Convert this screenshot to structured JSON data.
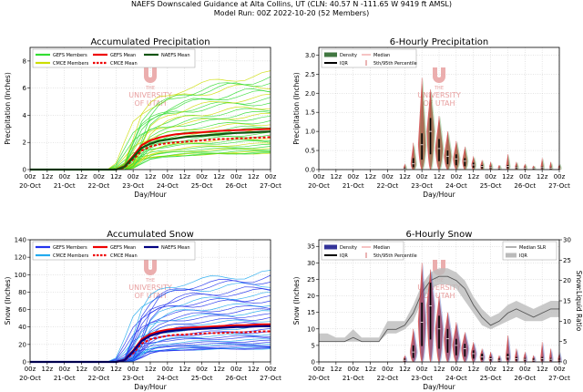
{
  "header": {
    "line1": "NAEFS Downscaled Guidance at Alta Collins, UT (CLN: 40.57 N -111.65 W 9419 ft AMSL)",
    "line2": "Model Run: 00Z 2022-10-20 (52 Members)"
  },
  "watermark": {
    "line1": "THE",
    "line2": "UNIVERSITY",
    "line3": "OF UTAH"
  },
  "colors": {
    "gefs_precip": "#33dd33",
    "cmce_precip": "#ccdd00",
    "naefs_precip": "#115511",
    "gefs_snow": "#2233ee",
    "cmce_snow": "#22aaee",
    "naefs_snow": "#000080",
    "gefs_mean": "#ee0000",
    "cmce_mean": "#ee0000",
    "violin_red": "#cc3333",
    "violin_green": "#449944",
    "violin_blue": "#3355bb",
    "watermark": "#e8a0a0"
  },
  "chart_data": [
    {
      "type": "line",
      "title": "Accumulated Precipitation",
      "xlabel": "Day/Hour",
      "ylabel": "Precipitation (Inches)",
      "ylim": [
        0,
        9
      ],
      "yticks": [
        0,
        2,
        4,
        6,
        8
      ],
      "grid": true,
      "x_hours": [
        0,
        6,
        12,
        18,
        24,
        30,
        36,
        42,
        48,
        54,
        60,
        66,
        72,
        78,
        84,
        90,
        96,
        102,
        108,
        114,
        120,
        126,
        132,
        138,
        144,
        150,
        156,
        162,
        168
      ],
      "x_tick_labels": [
        "00z",
        "12z",
        "00z",
        "12z",
        "00z",
        "12z",
        "00z",
        "12z",
        "00z",
        "12z",
        "00z",
        "12z",
        "00z",
        "12z",
        "00z"
      ],
      "x_day_labels": [
        "20-Oct",
        "21-Oct",
        "22-Oct",
        "23-Oct",
        "24-Oct",
        "25-Oct",
        "26-Oct",
        "27-Oct"
      ],
      "legend": [
        {
          "label": "GEFS Members",
          "color_key": "gefs_precip",
          "style": "solid"
        },
        {
          "label": "GEFS Mean",
          "color_key": "gefs_mean",
          "style": "solid"
        },
        {
          "label": "NAEFS Mean",
          "color_key": "naefs_precip",
          "style": "solid"
        },
        {
          "label": "CMCE Members",
          "color_key": "cmce_precip",
          "style": "solid"
        },
        {
          "label": "CMCE Mean",
          "color_key": "cmce_mean",
          "style": "dashed"
        }
      ],
      "series": [
        {
          "name": "NAEFS Mean",
          "values": [
            0,
            0,
            0,
            0,
            0,
            0,
            0,
            0,
            0,
            0,
            0,
            0.2,
            0.9,
            1.6,
            1.9,
            2.1,
            2.2,
            2.3,
            2.4,
            2.45,
            2.5,
            2.55,
            2.6,
            2.65,
            2.7,
            2.72,
            2.75,
            2.78,
            2.8
          ]
        },
        {
          "name": "GEFS Mean",
          "values": [
            0,
            0,
            0,
            0,
            0,
            0,
            0,
            0,
            0,
            0,
            0,
            0.25,
            1.0,
            1.8,
            2.15,
            2.35,
            2.5,
            2.6,
            2.65,
            2.7,
            2.75,
            2.8,
            2.85,
            2.88,
            2.9,
            2.92,
            2.95,
            2.97,
            3.0
          ]
        },
        {
          "name": "CMCE Mean",
          "values": [
            0,
            0,
            0,
            0,
            0,
            0,
            0,
            0,
            0,
            0,
            0,
            0.15,
            0.75,
            1.4,
            1.7,
            1.85,
            1.95,
            2.0,
            2.05,
            2.1,
            2.15,
            2.2,
            2.25,
            2.25,
            2.3,
            2.3,
            2.35,
            2.35,
            2.4
          ]
        }
      ],
      "member_max": 7.0,
      "member_min": 1.2
    },
    {
      "type": "bar",
      "title": "6-Hourly Precipitation",
      "xlabel": "Day/Hour",
      "ylabel": "Precipitation (Inches)",
      "ylim": [
        0,
        3.2
      ],
      "yticks": [
        0.0,
        0.5,
        1.0,
        1.5,
        2.0,
        2.5,
        3.0
      ],
      "grid": true,
      "x_tick_labels": [
        "00z",
        "12z",
        "00z",
        "12z",
        "00z",
        "12z",
        "00z",
        "12z",
        "00z",
        "12z",
        "00z",
        "12z",
        "00z",
        "12z",
        "00z"
      ],
      "x_day_labels": [
        "20-Oct",
        "21-Oct",
        "22-Oct",
        "23-Oct",
        "24-Oct",
        "25-Oct",
        "26-Oct",
        "27-Oct"
      ],
      "legend": [
        {
          "label": "Density",
          "color_key": "naefs_precip"
        },
        {
          "label": "IQR",
          "color_key": "naefs_precip"
        },
        {
          "label": "Median",
          "color_key": "gefs_mean"
        },
        {
          "label": "5th/95th Percentile",
          "color_key": "gefs_mean"
        }
      ],
      "x_hours": [
        60,
        66,
        72,
        78,
        84,
        90,
        96,
        102,
        108,
        114,
        120,
        126,
        132,
        138,
        144,
        150,
        156,
        162,
        168
      ],
      "median": [
        0.02,
        0.15,
        0.65,
        1.0,
        0.55,
        0.35,
        0.28,
        0.22,
        0.12,
        0.08,
        0.05,
        0.03,
        0.08,
        0.05,
        0.04,
        0.03,
        0.05,
        0.04,
        0.03
      ],
      "q75": [
        0.05,
        0.3,
        0.95,
        1.35,
        0.8,
        0.5,
        0.4,
        0.3,
        0.18,
        0.12,
        0.08,
        0.05,
        0.12,
        0.08,
        0.06,
        0.05,
        0.08,
        0.06,
        0.05
      ],
      "p95": [
        0.15,
        0.7,
        2.4,
        2.1,
        1.4,
        1.0,
        0.75,
        0.6,
        0.35,
        0.25,
        0.2,
        0.12,
        0.4,
        0.2,
        0.15,
        0.1,
        0.3,
        0.2,
        0.15
      ]
    },
    {
      "type": "line",
      "title": "Accumulated Snow",
      "xlabel": "Day/Hour",
      "ylabel": "Snow (Inches)",
      "ylim": [
        0,
        140
      ],
      "yticks": [
        0,
        20,
        40,
        60,
        80,
        100,
        120,
        140
      ],
      "grid": true,
      "x_hours": [
        0,
        6,
        12,
        18,
        24,
        30,
        36,
        42,
        48,
        54,
        60,
        66,
        72,
        78,
        84,
        90,
        96,
        102,
        108,
        114,
        120,
        126,
        132,
        138,
        144,
        150,
        156,
        162,
        168
      ],
      "x_tick_labels": [
        "00z",
        "12z",
        "00z",
        "12z",
        "00z",
        "12z",
        "00z",
        "12z",
        "00z",
        "12z",
        "00z",
        "12z",
        "00z",
        "12z",
        "00z"
      ],
      "x_day_labels": [
        "20-Oct",
        "21-Oct",
        "22-Oct",
        "23-Oct",
        "24-Oct",
        "25-Oct",
        "26-Oct",
        "27-Oct"
      ],
      "legend": [
        {
          "label": "GEFS Members",
          "color_key": "gefs_snow",
          "style": "solid"
        },
        {
          "label": "GEFS Mean",
          "color_key": "gefs_mean",
          "style": "solid"
        },
        {
          "label": "NAEFS Mean",
          "color_key": "naefs_snow",
          "style": "solid"
        },
        {
          "label": "CMCE Members",
          "color_key": "cmce_snow",
          "style": "solid"
        },
        {
          "label": "CMCE Mean",
          "color_key": "cmce_mean",
          "style": "dashed"
        }
      ],
      "series": [
        {
          "name": "NAEFS Mean",
          "values": [
            0,
            0,
            0,
            0,
            0,
            0,
            0,
            0,
            0,
            0,
            0,
            2,
            12,
            24,
            30,
            33,
            35,
            36,
            37,
            37.5,
            38,
            38.5,
            39,
            39.5,
            40,
            40,
            40.5,
            41,
            41
          ]
        },
        {
          "name": "GEFS Mean",
          "values": [
            0,
            0,
            0,
            0,
            0,
            0,
            0,
            0,
            0,
            0,
            0,
            2.5,
            13,
            26,
            32,
            35,
            37,
            38,
            39,
            39.5,
            40,
            40.5,
            41,
            41.5,
            42,
            42,
            42.5,
            43,
            43
          ]
        },
        {
          "name": "CMCE Mean",
          "values": [
            0,
            0,
            0,
            0,
            0,
            0,
            0,
            0,
            0,
            0,
            0,
            1.5,
            10,
            21,
            26,
            28,
            30,
            31,
            31.5,
            32,
            32.5,
            33,
            33,
            33.5,
            34,
            34,
            34.5,
            35,
            35
          ]
        }
      ],
      "member_max": 101,
      "member_min": 15
    },
    {
      "type": "bar",
      "title": "6-Hourly Snow",
      "xlabel": "Day/Hour",
      "ylabel": "Snow (Inches)",
      "y2label": "Snow:Liquid Ratio",
      "ylim": [
        0,
        37
      ],
      "yticks": [
        0,
        5,
        10,
        15,
        20,
        25,
        30,
        35
      ],
      "y2lim": [
        0,
        30
      ],
      "y2ticks": [
        0,
        5,
        10,
        15,
        20,
        25,
        30
      ],
      "grid": true,
      "x_tick_labels": [
        "00z",
        "12z",
        "00z",
        "12z",
        "00z",
        "12z",
        "00z",
        "12z",
        "00z",
        "12z",
        "00z",
        "12z",
        "00z",
        "12z",
        "00z"
      ],
      "x_day_labels": [
        "20-Oct",
        "21-Oct",
        "22-Oct",
        "23-Oct",
        "24-Oct",
        "25-Oct",
        "26-Oct",
        "27-Oct"
      ],
      "legend": [
        {
          "label": "Density",
          "color_key": "naefs_snow"
        },
        {
          "label": "IQR",
          "color_key": "naefs_snow"
        },
        {
          "label": "Median",
          "color_key": "gefs_mean"
        },
        {
          "label": "5th/95th Percentile",
          "color_key": "gefs_mean"
        },
        {
          "label": "Median SLR",
          "color_key": "naefs_snow"
        },
        {
          "label": "IQR",
          "color_key": "naefs_snow"
        }
      ],
      "x_hours": [
        60,
        66,
        72,
        78,
        84,
        90,
        96,
        102,
        108,
        114,
        120,
        126,
        132,
        138,
        144,
        150,
        156,
        162,
        168
      ],
      "median": [
        0.5,
        3,
        12,
        17,
        10,
        7,
        5,
        4,
        2.5,
        1.5,
        1,
        0.5,
        1.5,
        1,
        0.8,
        0.5,
        1,
        0.8,
        0.5
      ],
      "q75": [
        1,
        5,
        18,
        24,
        14,
        10,
        7,
        5.5,
        3.5,
        2.5,
        1.5,
        1,
        2.5,
        1.5,
        1.2,
        1,
        1.5,
        1.2,
        1
      ],
      "p95": [
        2,
        10,
        30,
        28,
        20,
        15,
        12,
        9,
        6,
        4,
        3,
        2,
        8,
        4,
        3,
        2,
        6,
        4,
        3
      ],
      "slr_hours": [
        0,
        6,
        12,
        18,
        24,
        30,
        36,
        42,
        48,
        54,
        60,
        66,
        72,
        78,
        84,
        90,
        96,
        102,
        108,
        114,
        120,
        126,
        132,
        138,
        144,
        150,
        156,
        162,
        168
      ],
      "slr_median": [
        5,
        5,
        5,
        5,
        6,
        5,
        5,
        5,
        8,
        8,
        9,
        12,
        17,
        20,
        21,
        21,
        20,
        18,
        14,
        11,
        9,
        10,
        12,
        13,
        12,
        11,
        12,
        13,
        13
      ],
      "slr_q25": [
        5,
        5,
        5,
        5,
        5,
        5,
        5,
        5,
        7,
        7,
        8,
        10,
        15,
        18,
        19,
        19,
        18,
        15,
        12,
        9,
        8,
        9,
        10,
        11,
        10,
        10,
        10,
        11,
        11
      ],
      "slr_q75": [
        7,
        7,
        6,
        6,
        8,
        6,
        6,
        6,
        10,
        10,
        10,
        14,
        19,
        22,
        23,
        23,
        22,
        20,
        16,
        13,
        11,
        12,
        14,
        15,
        14,
        13,
        14,
        15,
        15
      ]
    }
  ]
}
